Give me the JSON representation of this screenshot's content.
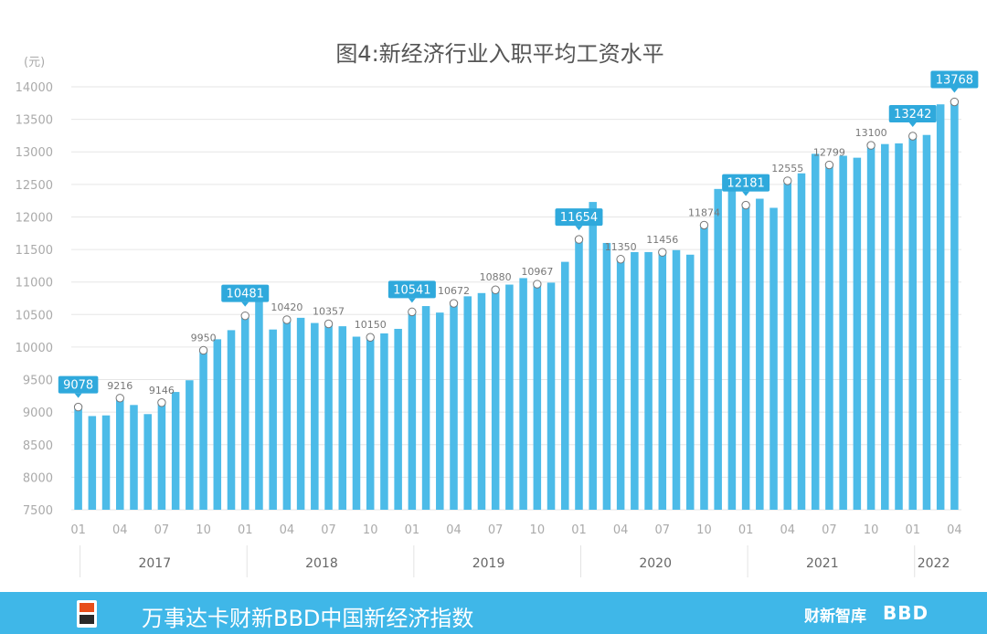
{
  "chart_data": {
    "type": "bar",
    "title": "图4:新经济行业入职平均工资水平",
    "unit_label": "(元)",
    "ylim": [
      7500,
      14000
    ],
    "y_ticks": [
      7500,
      8000,
      8500,
      9000,
      9500,
      10000,
      10500,
      11000,
      11500,
      12000,
      12500,
      13000,
      13500,
      14000
    ],
    "grid": true,
    "month_labels": [
      "01",
      "04",
      "07",
      "10",
      "01",
      "04",
      "07",
      "10",
      "01",
      "04",
      "07",
      "10",
      "01",
      "04",
      "07",
      "10",
      "01",
      "04",
      "07",
      "10",
      "01",
      "04"
    ],
    "year_labels": [
      "2017",
      "2018",
      "2019",
      "2020",
      "2021",
      "2022"
    ],
    "values": [
      9078,
      8940,
      8950,
      9216,
      9110,
      8970,
      9146,
      9310,
      9490,
      9950,
      10120,
      10260,
      10481,
      10760,
      10270,
      10420,
      10450,
      10370,
      10357,
      10320,
      10160,
      10150,
      10210,
      10280,
      10541,
      10630,
      10530,
      10672,
      10780,
      10830,
      10880,
      10960,
      11060,
      10967,
      10990,
      11310,
      11654,
      12230,
      11600,
      11350,
      11460,
      11460,
      11456,
      11490,
      11420,
      11874,
      12430,
      12530,
      12181,
      12280,
      12140,
      12555,
      12670,
      12970,
      12799,
      12940,
      12910,
      13100,
      13120,
      13130,
      13242,
      13260,
      13730,
      13768
    ],
    "annotations": [
      {
        "index": 0,
        "label": "9078",
        "highlight": true
      },
      {
        "index": 3,
        "label": "9216",
        "highlight": false
      },
      {
        "index": 6,
        "label": "9146",
        "highlight": false
      },
      {
        "index": 9,
        "label": "9950",
        "highlight": false
      },
      {
        "index": 12,
        "label": "10481",
        "highlight": true
      },
      {
        "index": 15,
        "label": "10420",
        "highlight": false
      },
      {
        "index": 18,
        "label": "10357",
        "highlight": false
      },
      {
        "index": 21,
        "label": "10150",
        "highlight": false
      },
      {
        "index": 24,
        "label": "10541",
        "highlight": true
      },
      {
        "index": 27,
        "label": "10672",
        "highlight": false
      },
      {
        "index": 30,
        "label": "10880",
        "highlight": false
      },
      {
        "index": 33,
        "label": "10967",
        "highlight": false
      },
      {
        "index": 36,
        "label": "11654",
        "highlight": true
      },
      {
        "index": 39,
        "label": "11350",
        "highlight": false
      },
      {
        "index": 42,
        "label": "11456",
        "highlight": false
      },
      {
        "index": 45,
        "label": "11874",
        "highlight": false
      },
      {
        "index": 48,
        "label": "12181",
        "highlight": true
      },
      {
        "index": 51,
        "label": "12555",
        "highlight": false
      },
      {
        "index": 54,
        "label": "12799",
        "highlight": false
      },
      {
        "index": 57,
        "label": "13100",
        "highlight": false
      },
      {
        "index": 60,
        "label": "13242",
        "highlight": true
      },
      {
        "index": 63,
        "label": "13768",
        "highlight": true
      }
    ],
    "bar_color": "#4cbbe8",
    "highlight_color": "#2fa9dc"
  },
  "footer": {
    "title": "万事达卡财新BBD中国新经济指数",
    "brand": "财新智库",
    "bbd": "BBD",
    "background": "#3fb7e8"
  }
}
